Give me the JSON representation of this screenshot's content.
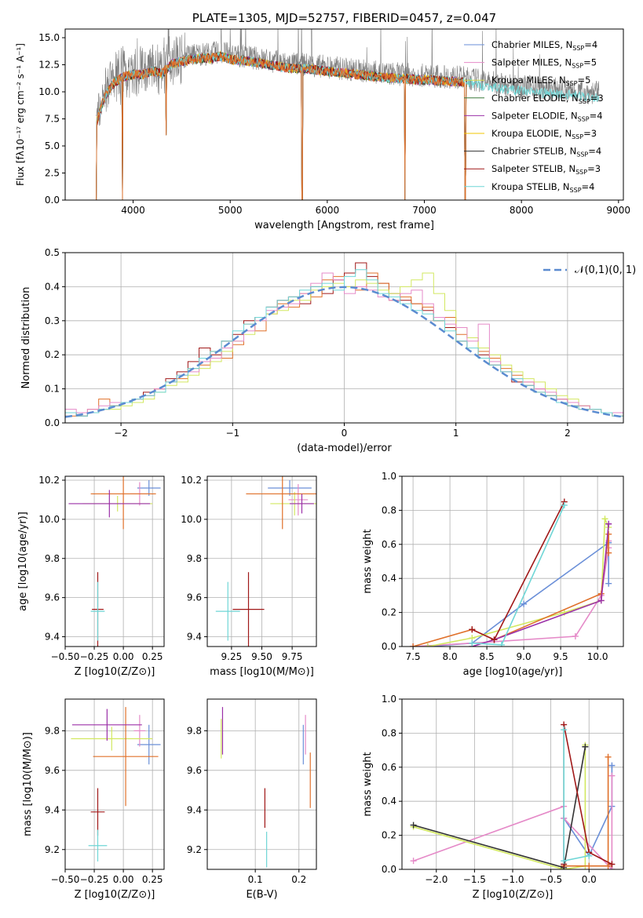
{
  "chart_data": [
    {
      "type": "line",
      "title": "PLATE=1305, MJD=52757, FIBERID=0457, z=0.047",
      "xlabel": "wavelength [Angstrom, rest frame]",
      "ylabel": "Flux [fλ10^-17 erg cm^-2 s^-1 A^-1]",
      "xlim": [
        3300,
        9050
      ],
      "ylim": [
        0,
        15.8
      ],
      "xticks": [
        "4000",
        "5000",
        "6000",
        "7000",
        "8000",
        "9000"
      ],
      "yticks": [
        "0.0",
        "2.5",
        "5.0",
        "7.5",
        "10.0",
        "12.5",
        "15.0"
      ],
      "legend_position": "top-right",
      "series": [
        {
          "name": "Chabrier MILES, N_SSP=4",
          "color": "#6a8fd8"
        },
        {
          "name": "Salpeter MILES, N_SSP=5",
          "color": "#e58ac8"
        },
        {
          "name": "Kroupa MILES, N_SSP=5",
          "color": "#d8d84a"
        },
        {
          "name": "Chabrier ELODIE, N_SSP=3",
          "color": "#3a7a3a"
        },
        {
          "name": "Salpeter ELODIE, N_SSP=4",
          "color": "#9b30a8"
        },
        {
          "name": "Kroupa ELODIE, N_SSP=3",
          "color": "#f2c500"
        },
        {
          "name": "Chabrier STELIB, N_SSP=4",
          "color": "#333333"
        },
        {
          "name": "Salpeter STELIB, N_SSP=3",
          "color": "#a01818"
        },
        {
          "name": "Kroupa STELIB, N_SSP=4",
          "color": "#6fd6d6"
        }
      ],
      "continuum_points": {
        "x": [
          3620,
          3700,
          3800,
          3900,
          4000,
          4100,
          4200,
          4300,
          4400,
          4500,
          4600,
          4700,
          4800,
          4900,
          5000,
          5200,
          5400,
          5600,
          5800,
          6000,
          6200,
          6400,
          6600,
          6800,
          7000,
          7200,
          7400,
          7600,
          7800,
          8000,
          8200,
          8400,
          8600,
          8800
        ],
        "y": [
          7.5,
          9.8,
          11.2,
          11.8,
          12.0,
          12.0,
          12.3,
          12.1,
          13.0,
          13.2,
          13.4,
          13.5,
          13.5,
          13.7,
          13.4,
          13.2,
          12.9,
          12.6,
          12.5,
          12.3,
          12.1,
          11.9,
          11.7,
          11.6,
          11.5,
          11.4,
          11.3,
          11.0,
          10.7,
          10.5,
          10.3,
          10.2,
          10.0,
          9.9
        ]
      },
      "absorption_dips": [
        {
          "x": 3620,
          "to": 0
        },
        {
          "x": 3890,
          "to": 0
        },
        {
          "x": 4340,
          "to": 6
        },
        {
          "x": 5740,
          "to": 0
        },
        {
          "x": 6800,
          "to": 0
        },
        {
          "x": 7420,
          "to": 0
        }
      ]
    },
    {
      "type": "step",
      "xlabel": "(data-model)/error",
      "ylabel": "Normed distribution",
      "xlim": [
        -2.5,
        2.5
      ],
      "ylim": [
        0,
        0.5
      ],
      "xticks": [
        "−2",
        "−1",
        "0",
        "1",
        "2"
      ],
      "yticks": [
        "0.0",
        "0.1",
        "0.2",
        "0.3",
        "0.4",
        "0.5"
      ],
      "grid": true,
      "legend_position": "top-right",
      "reference_curve": {
        "name": "𝒩(0,1)",
        "color": "#5b8bd0",
        "style": "dashed"
      },
      "bin_edges": [
        -2.5,
        -2.4,
        -2.3,
        -2.2,
        -2.1,
        -2.0,
        -1.9,
        -1.8,
        -1.7,
        -1.6,
        -1.5,
        -1.4,
        -1.3,
        -1.2,
        -1.1,
        -1.0,
        -0.9,
        -0.8,
        -0.7,
        -0.6,
        -0.5,
        -0.4,
        -0.3,
        -0.2,
        -0.1,
        0.0,
        0.1,
        0.2,
        0.3,
        0.4,
        0.5,
        0.6,
        0.7,
        0.8,
        0.9,
        1.0,
        1.1,
        1.2,
        1.3,
        1.4,
        1.5,
        1.6,
        1.7,
        1.8,
        1.9,
        2.0,
        2.1,
        2.2,
        2.3,
        2.4,
        2.5
      ],
      "histogram_series": [
        {
          "color": "#a01818",
          "values": [
            0.03,
            0.02,
            0.03,
            0.04,
            0.05,
            0.06,
            0.07,
            0.09,
            0.1,
            0.13,
            0.15,
            0.18,
            0.22,
            0.2,
            0.24,
            0.26,
            0.3,
            0.31,
            0.34,
            0.36,
            0.37,
            0.35,
            0.4,
            0.38,
            0.42,
            0.44,
            0.47,
            0.43,
            0.41,
            0.38,
            0.36,
            0.35,
            0.33,
            0.3,
            0.28,
            0.24,
            0.22,
            0.2,
            0.17,
            0.15,
            0.12,
            0.11,
            0.1,
            0.08,
            0.07,
            0.05,
            0.05,
            0.04,
            0.03,
            0.03
          ]
        },
        {
          "color": "#e0702a",
          "values": [
            0.02,
            0.03,
            0.04,
            0.07,
            0.05,
            0.06,
            0.06,
            0.08,
            0.1,
            0.12,
            0.13,
            0.16,
            0.17,
            0.21,
            0.19,
            0.23,
            0.29,
            0.27,
            0.32,
            0.35,
            0.34,
            0.38,
            0.37,
            0.42,
            0.43,
            0.4,
            0.39,
            0.44,
            0.41,
            0.36,
            0.37,
            0.35,
            0.34,
            0.3,
            0.31,
            0.26,
            0.25,
            0.21,
            0.19,
            0.16,
            0.14,
            0.12,
            0.09,
            0.08,
            0.07,
            0.05,
            0.04,
            0.04,
            0.03,
            0.02
          ]
        },
        {
          "color": "#d2e860",
          "values": [
            0.03,
            0.03,
            0.03,
            0.04,
            0.04,
            0.05,
            0.06,
            0.07,
            0.09,
            0.11,
            0.12,
            0.14,
            0.16,
            0.18,
            0.21,
            0.24,
            0.26,
            0.3,
            0.32,
            0.33,
            0.36,
            0.36,
            0.39,
            0.4,
            0.41,
            0.4,
            0.42,
            0.41,
            0.39,
            0.38,
            0.4,
            0.42,
            0.44,
            0.38,
            0.33,
            0.28,
            0.25,
            0.22,
            0.2,
            0.17,
            0.15,
            0.13,
            0.12,
            0.1,
            0.08,
            0.07,
            0.05,
            0.04,
            0.03,
            0.03
          ]
        },
        {
          "color": "#e58ac8",
          "values": [
            0.04,
            0.03,
            0.04,
            0.05,
            0.06,
            0.06,
            0.07,
            0.08,
            0.1,
            0.12,
            0.14,
            0.15,
            0.18,
            0.19,
            0.22,
            0.24,
            0.27,
            0.3,
            0.33,
            0.34,
            0.35,
            0.38,
            0.41,
            0.44,
            0.42,
            0.38,
            0.4,
            0.39,
            0.37,
            0.36,
            0.38,
            0.39,
            0.35,
            0.31,
            0.29,
            0.28,
            0.24,
            0.29,
            0.18,
            0.15,
            0.13,
            0.12,
            0.1,
            0.09,
            0.07,
            0.06,
            0.05,
            0.04,
            0.03,
            0.03
          ]
        },
        {
          "color": "#6fd6d6",
          "values": [
            0.03,
            0.02,
            0.03,
            0.04,
            0.05,
            0.06,
            0.07,
            0.08,
            0.09,
            0.12,
            0.14,
            0.16,
            0.19,
            0.21,
            0.24,
            0.27,
            0.29,
            0.31,
            0.34,
            0.36,
            0.37,
            0.39,
            0.4,
            0.41,
            0.39,
            0.43,
            0.45,
            0.42,
            0.38,
            0.37,
            0.35,
            0.33,
            0.32,
            0.3,
            0.27,
            0.24,
            0.22,
            0.19,
            0.17,
            0.15,
            0.13,
            0.11,
            0.09,
            0.08,
            0.06,
            0.05,
            0.04,
            0.04,
            0.03,
            0.02
          ]
        }
      ]
    },
    {
      "type": "errorbar",
      "xlabel": "Z [log10(Z/Z⊙)]",
      "ylabel": "age  [log10(age/yr)]",
      "xlim": [
        -0.5,
        0.35
      ],
      "ylim": [
        9.35,
        10.22
      ],
      "xticks": [
        "−0.50",
        "−0.25",
        "0.00",
        "0.25"
      ],
      "yticks": [
        "9.4",
        "9.6",
        "9.8",
        "10.0",
        "10.2"
      ],
      "points": [
        {
          "x": 0.22,
          "y": 10.16,
          "xerr": 0.1,
          "yerr": 0.04,
          "color": "#6a8fd8"
        },
        {
          "x": 0.14,
          "y": 10.13,
          "xerr": 0.08,
          "yerr": 0.06,
          "color": "#e58ac8"
        },
        {
          "x": -0.05,
          "y": 10.08,
          "xerr": 0.3,
          "yerr": 0.04,
          "color": "#d2e860"
        },
        {
          "x": 0.0,
          "y": 10.13,
          "xerr": 0.28,
          "yerr": 0.18,
          "color": "#e0702a"
        },
        {
          "x": -0.12,
          "y": 10.08,
          "xerr": 0.35,
          "yerr": 0.07,
          "color": "#9b30a8"
        },
        {
          "x": -0.22,
          "y": 9.54,
          "xerr": 0.05,
          "yerr": 0.19,
          "color": "#a01818"
        },
        {
          "x": -0.22,
          "y": 9.53,
          "xerr": 0.06,
          "yerr": 0.15,
          "color": "#6fd6d6"
        }
      ]
    },
    {
      "type": "errorbar",
      "xlabel": "mass [log10(M/M⊙)]",
      "ylabel": "",
      "xlim": [
        9.05,
        9.95
      ],
      "ylim": [
        9.35,
        10.22
      ],
      "xticks": [
        "9.25",
        "9.50",
        "9.75"
      ],
      "yticks": [
        "9.4",
        "9.6",
        "9.8",
        "10.0",
        "10.2"
      ],
      "points": [
        {
          "x": 9.73,
          "y": 10.16,
          "xerr": 0.18,
          "yerr": 0.04,
          "color": "#6a8fd8"
        },
        {
          "x": 9.8,
          "y": 10.1,
          "xerr": 0.08,
          "yerr": 0.08,
          "color": "#e58ac8"
        },
        {
          "x": 9.77,
          "y": 10.08,
          "xerr": 0.2,
          "yerr": 0.06,
          "color": "#d2e860"
        },
        {
          "x": 9.67,
          "y": 10.13,
          "xerr": 0.3,
          "yerr": 0.18,
          "color": "#e0702a"
        },
        {
          "x": 9.83,
          "y": 10.08,
          "xerr": 0.1,
          "yerr": 0.05,
          "color": "#9b30a8"
        },
        {
          "x": 9.39,
          "y": 9.54,
          "xerr": 0.13,
          "yerr": 0.19,
          "color": "#a01818"
        },
        {
          "x": 9.22,
          "y": 9.53,
          "xerr": 0.1,
          "yerr": 0.15,
          "color": "#6fd6d6"
        }
      ]
    },
    {
      "type": "line",
      "xlabel": "age  [log10(age/yr)]",
      "ylabel": "mass weight",
      "xlim": [
        7.35,
        10.35
      ],
      "ylim": [
        0,
        1.0
      ],
      "xticks": [
        "7.5",
        "8.0",
        "8.5",
        "9.0",
        "9.5",
        "10.0"
      ],
      "yticks": [
        "0.0",
        "0.2",
        "0.4",
        "0.6",
        "0.8",
        "1.0"
      ],
      "grid": true,
      "series": [
        {
          "color": "#6a8fd8",
          "x": [
            7.7,
            8.3,
            9.0,
            10.15,
            10.15
          ],
          "y": [
            0.0,
            0.02,
            0.25,
            0.61,
            0.37
          ]
        },
        {
          "color": "#e58ac8",
          "x": [
            7.5,
            8.3,
            9.7,
            10.05,
            10.15,
            10.15
          ],
          "y": [
            0.0,
            0.02,
            0.06,
            0.3,
            0.58,
            0.62
          ]
        },
        {
          "color": "#d2e860",
          "x": [
            7.7,
            8.3,
            9.55,
            10.05,
            10.1,
            10.15
          ],
          "y": [
            0.0,
            0.05,
            0.2,
            0.27,
            0.75,
            0.7
          ]
        },
        {
          "color": "#e0702a",
          "x": [
            7.5,
            8.3,
            8.6,
            10.05,
            10.15,
            10.15
          ],
          "y": [
            0.0,
            0.1,
            0.04,
            0.31,
            0.66,
            0.55
          ]
        },
        {
          "color": "#9b30a8",
          "x": [
            8.3,
            8.6,
            10.05,
            10.15
          ],
          "y": [
            0.0,
            0.04,
            0.27,
            0.72
          ]
        },
        {
          "color": "#a01818",
          "x": [
            8.3,
            8.6,
            9.55
          ],
          "y": [
            0.1,
            0.04,
            0.85
          ]
        },
        {
          "color": "#6fd6d6",
          "x": [
            8.3,
            8.7,
            9.55
          ],
          "y": [
            0.02,
            0.01,
            0.83
          ]
        }
      ]
    },
    {
      "type": "errorbar",
      "xlabel": "Z [log10(Z/Z⊙)]",
      "ylabel": "mass [log10(M/M⊙)]",
      "xlim": [
        -0.5,
        0.35
      ],
      "ylim": [
        9.1,
        9.96
      ],
      "xticks": [
        "−0.50",
        "−0.25",
        "0.00",
        "0.25"
      ],
      "yticks": [
        "9.2",
        "9.4",
        "9.6",
        "9.8"
      ],
      "points": [
        {
          "x": 0.22,
          "y": 9.73,
          "xerr": 0.1,
          "yerr": 0.1,
          "color": "#6a8fd8"
        },
        {
          "x": 0.14,
          "y": 9.8,
          "xerr": 0.05,
          "yerr": 0.08,
          "color": "#e58ac8"
        },
        {
          "x": -0.1,
          "y": 9.76,
          "xerr": 0.35,
          "yerr": 0.06,
          "color": "#d2e860"
        },
        {
          "x": 0.02,
          "y": 9.67,
          "xerr": 0.28,
          "yerr": 0.25,
          "color": "#e0702a"
        },
        {
          "x": -0.14,
          "y": 9.83,
          "xerr": 0.3,
          "yerr": 0.08,
          "color": "#9b30a8"
        },
        {
          "x": -0.22,
          "y": 9.39,
          "xerr": 0.06,
          "yerr": 0.12,
          "color": "#a01818"
        },
        {
          "x": -0.22,
          "y": 9.22,
          "xerr": 0.08,
          "yerr": 0.08,
          "color": "#6fd6d6"
        }
      ]
    },
    {
      "type": "errorbar",
      "xlabel": "E(B-V)",
      "ylabel": "",
      "xlim": [
        -0.01,
        0.24
      ],
      "ylim": [
        9.1,
        9.96
      ],
      "xticks": [
        "0.1",
        "0.2"
      ],
      "yticks": [
        "9.2",
        "9.4",
        "9.6",
        "9.8"
      ],
      "points": [
        {
          "x": 0.21,
          "y": 9.73,
          "xerr": 0.0,
          "yerr": 0.1,
          "color": "#6a8fd8"
        },
        {
          "x": 0.215,
          "y": 9.78,
          "xerr": 0.0,
          "yerr": 0.1,
          "color": "#e58ac8"
        },
        {
          "x": 0.022,
          "y": 9.76,
          "xerr": 0.0,
          "yerr": 0.1,
          "color": "#d2e860"
        },
        {
          "x": 0.226,
          "y": 9.55,
          "xerr": 0.0,
          "yerr": 0.14,
          "color": "#e0702a"
        },
        {
          "x": 0.025,
          "y": 9.8,
          "xerr": 0.0,
          "yerr": 0.12,
          "color": "#9b30a8"
        },
        {
          "x": 0.122,
          "y": 9.41,
          "xerr": 0.0,
          "yerr": 0.1,
          "color": "#a01818"
        },
        {
          "x": 0.126,
          "y": 9.2,
          "xerr": 0.0,
          "yerr": 0.09,
          "color": "#6fd6d6"
        }
      ]
    },
    {
      "type": "line",
      "xlabel": "Z [log10(Z/Z⊙)]",
      "ylabel": "mass weight",
      "xlim": [
        -2.45,
        0.45
      ],
      "ylim": [
        0,
        1.0
      ],
      "xticks": [
        "−2.0",
        "−1.5",
        "−1.0",
        "−0.5",
        "0.0"
      ],
      "yticks": [
        "0.0",
        "0.2",
        "0.4",
        "0.6",
        "0.8",
        "1.0"
      ],
      "grid": true,
      "series": [
        {
          "color": "#6a8fd8",
          "x": [
            -0.33,
            -0.33,
            0.0,
            0.3,
            0.3
          ],
          "y": [
            0.0,
            0.3,
            0.08,
            0.37,
            0.61
          ]
        },
        {
          "color": "#e58ac8",
          "x": [
            -2.3,
            -0.33,
            -0.33,
            0.3,
            0.3
          ],
          "y": [
            0.05,
            0.37,
            0.3,
            0.0,
            0.55
          ]
        },
        {
          "color": "#d2e860",
          "x": [
            -2.3,
            -0.33,
            -0.05,
            -0.05
          ],
          "y": [
            0.25,
            0.0,
            0.02,
            0.73
          ]
        },
        {
          "color": "#e0702a",
          "x": [
            -0.33,
            0.0,
            0.25,
            0.25
          ],
          "y": [
            0.02,
            0.02,
            0.02,
            0.66
          ]
        },
        {
          "color": "#333333",
          "x": [
            -2.3,
            -0.33,
            -0.05
          ],
          "y": [
            0.26,
            0.01,
            0.72
          ]
        },
        {
          "color": "#a01818",
          "x": [
            -0.33,
            -0.33,
            0.0,
            0.3
          ],
          "y": [
            0.03,
            0.85,
            0.1,
            0.03
          ]
        },
        {
          "color": "#6fd6d6",
          "x": [
            -0.33,
            -0.33,
            0.0
          ],
          "y": [
            0.82,
            0.05,
            0.08
          ]
        }
      ]
    }
  ]
}
